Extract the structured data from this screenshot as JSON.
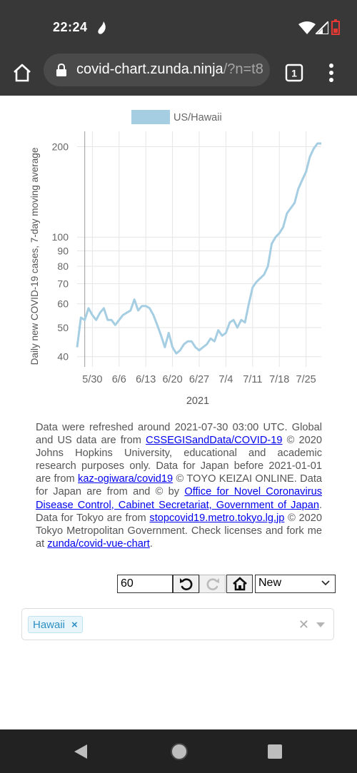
{
  "status_bar": {
    "time": "22:24"
  },
  "browser": {
    "url_host": "covid-chart.zunda.ninja",
    "url_rest": "/?n=t8",
    "tab_count": "1"
  },
  "chart_data": {
    "type": "line",
    "legend": [
      "US/Hawaii"
    ],
    "series_color": "#a6cee3",
    "ylabel": "Daily new COVID-19 cases, 7-day moving average",
    "xlabel": "2021",
    "yscale": "log",
    "ylim": [
      37,
      225
    ],
    "y_ticks": [
      40,
      50,
      60,
      70,
      80,
      90,
      100,
      200
    ],
    "x_ticks": [
      "5/30",
      "6/6",
      "6/13",
      "6/20",
      "6/27",
      "7/4",
      "7/11",
      "7/18",
      "7/25"
    ],
    "x_start": "2021-05-26",
    "x_end": "2021-07-29",
    "grid": true,
    "legend_position": "top",
    "series": [
      {
        "name": "US/Hawaii",
        "x": [
          "2021-05-26",
          "2021-05-27",
          "2021-05-28",
          "2021-05-29",
          "2021-05-30",
          "2021-05-31",
          "2021-06-01",
          "2021-06-02",
          "2021-06-03",
          "2021-06-04",
          "2021-06-05",
          "2021-06-06",
          "2021-06-07",
          "2021-06-08",
          "2021-06-09",
          "2021-06-10",
          "2021-06-11",
          "2021-06-12",
          "2021-06-13",
          "2021-06-14",
          "2021-06-15",
          "2021-06-16",
          "2021-06-17",
          "2021-06-18",
          "2021-06-19",
          "2021-06-20",
          "2021-06-21",
          "2021-06-22",
          "2021-06-23",
          "2021-06-24",
          "2021-06-25",
          "2021-06-26",
          "2021-06-27",
          "2021-06-28",
          "2021-06-29",
          "2021-06-30",
          "2021-07-01",
          "2021-07-02",
          "2021-07-03",
          "2021-07-04",
          "2021-07-05",
          "2021-07-06",
          "2021-07-07",
          "2021-07-08",
          "2021-07-09",
          "2021-07-10",
          "2021-07-11",
          "2021-07-12",
          "2021-07-13",
          "2021-07-14",
          "2021-07-15",
          "2021-07-16",
          "2021-07-17",
          "2021-07-18",
          "2021-07-19",
          "2021-07-20",
          "2021-07-21",
          "2021-07-22",
          "2021-07-23",
          "2021-07-24",
          "2021-07-25",
          "2021-07-26",
          "2021-07-27",
          "2021-07-28",
          "2021-07-29"
        ],
        "values": [
          43,
          54,
          53,
          58,
          55,
          53,
          56,
          58,
          53,
          53,
          51,
          53,
          55,
          56,
          57,
          62,
          57,
          59,
          59,
          58,
          55,
          51,
          47,
          43,
          48,
          43,
          41,
          42,
          44,
          45,
          45,
          43,
          42,
          43,
          44,
          46,
          45,
          49,
          47,
          48,
          52,
          53,
          50,
          53,
          52,
          60,
          68,
          71,
          73,
          75,
          80,
          95,
          100,
          103,
          108,
          120,
          125,
          130,
          145,
          155,
          165,
          185,
          197,
          205,
          205
        ]
      }
    ]
  },
  "footnote": {
    "t1": "Data were refreshed around 2021-07-30 03:00 UTC. Global and US data are from ",
    "l1": "CSSEGISandData/COVID-19",
    "t2": " © 2020 Johns Hopkins University, educational and academic research purposes only. Data for Japan before 2021-01-01 are from ",
    "l2": "kaz-ogiwara/covid19",
    "t3": " © TOYO KEIZAI ONLINE. Data for Japan are from and © by ",
    "l3": "Office for Novel Coronavirus Disease Control, Cabinet Secretariat, Government of Japan",
    "t4": ". Data for Tokyo are from ",
    "l4": "stopcovid19.metro.tokyo.lg.jp",
    "t5": " © 2020 Tokyo Metropolitan Government. Check licenses and fork me at ",
    "l5": "zunda/covid-vue-chart",
    "t6": "."
  },
  "controls": {
    "days_value": "60",
    "mode_selected": "New"
  },
  "region_select": {
    "tag": "Hawaii",
    "remove_glyph": "×",
    "clear_glyph": "✕"
  }
}
